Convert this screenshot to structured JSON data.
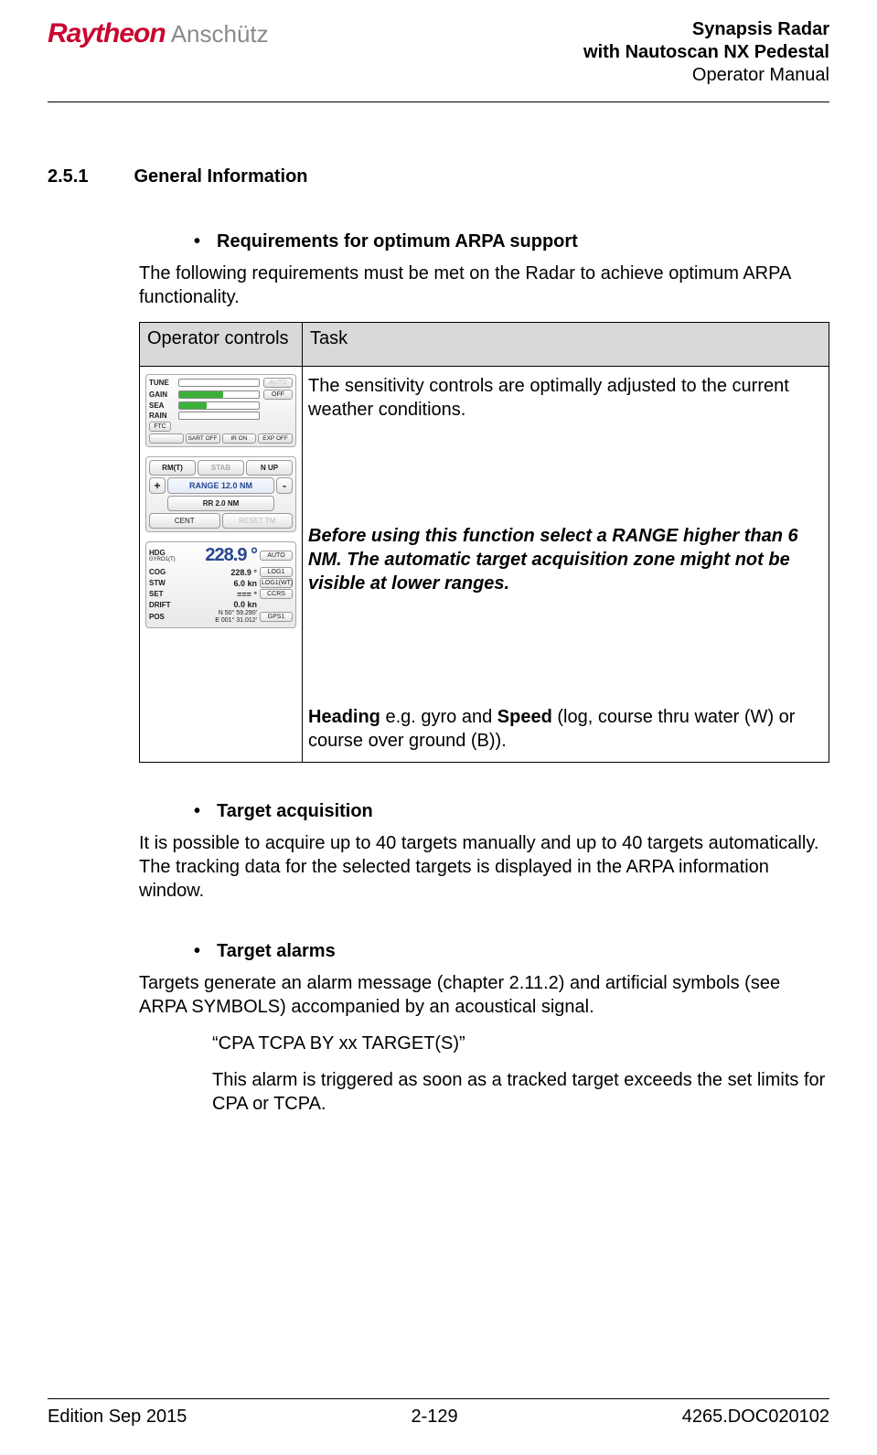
{
  "header": {
    "logo_main": "Raytheon",
    "logo_sub": "Anschütz",
    "title_line1": "Synapsis Radar",
    "title_line2": "with Nautoscan NX Pedestal",
    "title_line3": "Operator Manual"
  },
  "section": {
    "number": "2.5.1",
    "title": "General Information"
  },
  "bullets": {
    "b1": "Requirements for optimum ARPA support",
    "b2": "Target acquisition",
    "b3": "Target alarms"
  },
  "paras": {
    "p1": "The following requirements must be met on the Radar to achieve optimum ARPA functionality.",
    "p2": "It is possible to acquire up to 40 targets manually and up to 40 targets automatically. The tracking data for the selected targets is displayed in the ARPA information window.",
    "p3": "Targets generate an alarm message (chapter 2.11.2) and artificial symbols (see ARPA SYMBOLS) accompanied by an acoustical signal.",
    "quote1": "“CPA TCPA BY xx TARGET(S)”",
    "quote1_desc": "This alarm is triggered as soon as a tracked target exceeds the set limits for CPA or TCPA."
  },
  "table": {
    "columns": [
      "Operator controls",
      "Task"
    ],
    "row1": {
      "task_text": "The sensitivity controls are optimally adjusted to the current weather conditions.",
      "task_note": "Before using this function select a RANGE higher than 6 NM. The automatic target acquisition zone might not be visible at lower ranges.",
      "heading_text_pre": "Heading",
      "heading_text_mid": " e.g. gyro and ",
      "heading_text_bold2": "Speed",
      "heading_text_post": " (log, course thru water (W) or course over ground (B))."
    }
  },
  "sensitivity_panel": {
    "rows": [
      {
        "label": "TUNE",
        "fill_pct": 60,
        "fill_color": "#ffffff",
        "btn": "AUTO",
        "btn_dim": true
      },
      {
        "label": "GAIN",
        "fill_pct": 55,
        "fill_color": "#3bb13b",
        "btn": "OFF",
        "btn_dim": false
      },
      {
        "label": "SEA",
        "fill_pct": 35,
        "fill_color": "#3bb13b",
        "btn": "",
        "btn_dim": true
      },
      {
        "label": "RAIN",
        "fill_pct": 15,
        "fill_color": "#ffffff",
        "btn": "",
        "btn_dim": true
      }
    ],
    "ftc": "FTC",
    "bottom": [
      "",
      "SART OFF",
      "IR ON",
      "EXP OFF"
    ]
  },
  "range_panel": {
    "row1": [
      "RM(T)",
      "STAB",
      "N UP"
    ],
    "row1_dim_idx": 1,
    "plus": "+",
    "range_label": "RANGE 12.0 NM",
    "minus": "-",
    "rr": "RR 2.0 NM",
    "row4": [
      "CENT",
      "RESET TM"
    ],
    "row4_dim_idx": 1
  },
  "nav_panel": {
    "rows": [
      {
        "label": "HDG",
        "sublabel": "GYRO1(T)",
        "value": "228.9",
        "unit": "°",
        "btn": "AUTO",
        "big": true
      },
      {
        "label": "COG",
        "value": "228.9",
        "unit": "°",
        "btn": "LOG1"
      },
      {
        "label": "STW",
        "value": "6.0",
        "unit": "kn",
        "btn": "LOG1(WT)"
      },
      {
        "label": "SET",
        "value": "===",
        "unit": "°",
        "btn": "CCRS"
      },
      {
        "label": "DRIFT",
        "value": "0.0",
        "unit": "kn",
        "btn": ""
      },
      {
        "label": "POS",
        "value": "N 50° 59.290'\nE 001° 31.012'",
        "btn": "GPS1",
        "pos": true
      }
    ]
  },
  "footer": {
    "left": "Edition Sep 2015",
    "center": "2-129",
    "right": "4265.DOC020102"
  }
}
